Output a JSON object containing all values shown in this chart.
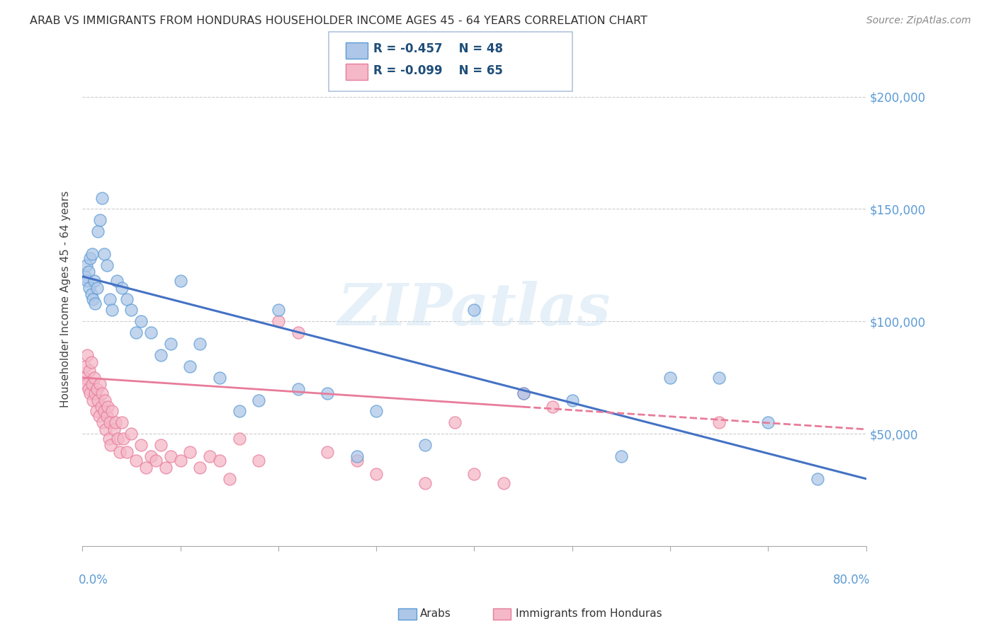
{
  "title": "ARAB VS IMMIGRANTS FROM HONDURAS HOUSEHOLDER INCOME AGES 45 - 64 YEARS CORRELATION CHART",
  "source": "Source: ZipAtlas.com",
  "ylabel": "Householder Income Ages 45 - 64 years",
  "xlim": [
    0.0,
    80.0
  ],
  "ylim": [
    0,
    220000
  ],
  "yticks": [
    0,
    50000,
    100000,
    150000,
    200000
  ],
  "arab_color_fill": "#aec7e8",
  "arab_color_edge": "#5b9bd5",
  "honduras_color_fill": "#f4b8c8",
  "honduras_color_edge": "#e87c9a",
  "arab_line_color": "#4472c4",
  "honduras_line_color": "#e87c9a",
  "arab_R": -0.457,
  "arab_N": 48,
  "honduras_R": -0.099,
  "honduras_N": 65,
  "legend_color": "#1f4e79",
  "grid_color": "#cccccc",
  "background_color": "#ffffff",
  "watermark": "ZIPatlas",
  "arab_line_x0": 0,
  "arab_line_y0": 120000,
  "arab_line_x1": 80,
  "arab_line_y1": 30000,
  "hond_line_x0": 0,
  "hond_line_y0": 75000,
  "hond_line_x1": 45,
  "hond_line_y1": 62000,
  "hond_dash_x0": 45,
  "hond_dash_y0": 62000,
  "hond_dash_x1": 80,
  "hond_dash_y1": 52000,
  "arab_x": [
    0.3,
    0.4,
    0.5,
    0.6,
    0.7,
    0.8,
    0.9,
    1.0,
    1.1,
    1.2,
    1.3,
    1.5,
    1.6,
    1.8,
    2.0,
    2.2,
    2.5,
    2.8,
    3.0,
    3.5,
    4.0,
    4.5,
    5.0,
    5.5,
    6.0,
    7.0,
    8.0,
    9.0,
    10.0,
    11.0,
    12.0,
    14.0,
    16.0,
    18.0,
    20.0,
    22.0,
    25.0,
    28.0,
    30.0,
    35.0,
    40.0,
    45.0,
    50.0,
    55.0,
    60.0,
    65.0,
    70.0,
    75.0
  ],
  "arab_y": [
    120000,
    125000,
    118000,
    122000,
    115000,
    128000,
    112000,
    130000,
    110000,
    118000,
    108000,
    115000,
    140000,
    145000,
    155000,
    130000,
    125000,
    110000,
    105000,
    118000,
    115000,
    110000,
    105000,
    95000,
    100000,
    95000,
    85000,
    90000,
    118000,
    80000,
    90000,
    75000,
    60000,
    65000,
    105000,
    70000,
    68000,
    40000,
    60000,
    45000,
    105000,
    68000,
    65000,
    40000,
    75000,
    75000,
    55000,
    30000
  ],
  "hond_x": [
    0.2,
    0.3,
    0.4,
    0.5,
    0.6,
    0.7,
    0.8,
    0.9,
    1.0,
    1.1,
    1.2,
    1.3,
    1.4,
    1.5,
    1.6,
    1.7,
    1.8,
    1.9,
    2.0,
    2.1,
    2.2,
    2.3,
    2.4,
    2.5,
    2.6,
    2.7,
    2.8,
    2.9,
    3.0,
    3.2,
    3.4,
    3.6,
    3.8,
    4.0,
    4.2,
    4.5,
    5.0,
    5.5,
    6.0,
    6.5,
    7.0,
    7.5,
    8.0,
    8.5,
    9.0,
    10.0,
    11.0,
    12.0,
    13.0,
    14.0,
    15.0,
    16.0,
    18.0,
    20.0,
    22.0,
    25.0,
    28.0,
    30.0,
    35.0,
    38.0,
    40.0,
    43.0,
    45.0,
    48.0,
    65.0
  ],
  "hond_y": [
    75000,
    80000,
    72000,
    85000,
    70000,
    78000,
    68000,
    82000,
    72000,
    65000,
    75000,
    68000,
    60000,
    70000,
    65000,
    58000,
    72000,
    62000,
    68000,
    55000,
    60000,
    65000,
    52000,
    58000,
    62000,
    48000,
    55000,
    45000,
    60000,
    52000,
    55000,
    48000,
    42000,
    55000,
    48000,
    42000,
    50000,
    38000,
    45000,
    35000,
    40000,
    38000,
    45000,
    35000,
    40000,
    38000,
    42000,
    35000,
    40000,
    38000,
    30000,
    48000,
    38000,
    100000,
    95000,
    42000,
    38000,
    32000,
    28000,
    55000,
    32000,
    28000,
    68000,
    62000,
    55000
  ]
}
